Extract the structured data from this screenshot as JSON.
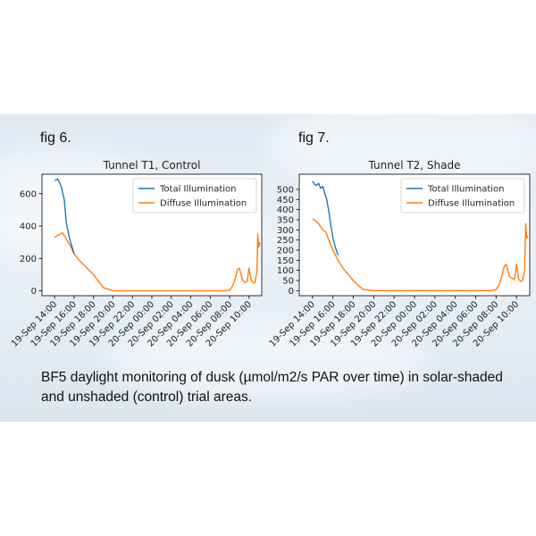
{
  "figures": [
    {
      "label": "fig 6."
    },
    {
      "label": "fig 7."
    }
  ],
  "caption": {
    "line1": "BF5 daylight monitoring of dusk (µmol/m2/s PAR over time) in solar-shaded",
    "line2": "and unshaded (control) trial areas."
  },
  "chart_data": [
    {
      "type": "line",
      "title": "Tunnel T1, Control",
      "xlabel": "",
      "ylabel": "",
      "x_unit": "hours since 19-Sep 14:00",
      "xlim": [
        -1.3,
        21.3
      ],
      "ylim": [
        -30,
        720
      ],
      "yticks": [
        0,
        200,
        400,
        600
      ],
      "xtick_labels": [
        "19-Sep 14:00",
        "19-Sep 16:00",
        "19-Sep 18:00",
        "19-Sep 20:00",
        "19-Sep 22:00",
        "20-Sep 00:00",
        "20-Sep 02:00",
        "20-Sep 04:00",
        "20-Sep 06:00",
        "20-Sep 08:00",
        "20-Sep 10:00"
      ],
      "legend": {
        "placement": "upper right",
        "entries": [
          "Total Illumination",
          "Diffuse Illumination"
        ]
      },
      "grid": false,
      "colors": {
        "total": "#1f77b4",
        "diffuse": "#ff7f0e"
      },
      "series": [
        {
          "name": "Total Illumination",
          "x": [
            0,
            0.3,
            0.5,
            0.7,
            1.0,
            1.2,
            1.5,
            1.8,
            2.0
          ],
          "y": [
            680,
            690,
            670,
            640,
            560,
            420,
            330,
            270,
            230
          ]
        },
        {
          "name": "Diffuse Illumination",
          "x": [
            0,
            0.4,
            0.8,
            1.2,
            1.6,
            2.0,
            2.5,
            3.0,
            3.5,
            4.0,
            4.5,
            5.0,
            6.0,
            8.0,
            10.0,
            12.0,
            14.0,
            16.0,
            17.5,
            18.0,
            18.3,
            18.6,
            18.8,
            19.0,
            19.3,
            19.6,
            19.8,
            20.0,
            20.2,
            20.4,
            20.6,
            20.8,
            20.9,
            21.0,
            21.1
          ],
          "y": [
            330,
            345,
            360,
            320,
            280,
            230,
            190,
            160,
            130,
            100,
            60,
            20,
            0,
            0,
            0,
            0,
            0,
            0,
            0,
            5,
            30,
            80,
            130,
            140,
            70,
            50,
            60,
            140,
            70,
            50,
            50,
            120,
            350,
            270,
            300
          ]
        }
      ]
    },
    {
      "type": "line",
      "title": "Tunnel T2, Shade",
      "xlabel": "",
      "ylabel": "",
      "x_unit": "hours since 19-Sep 14:00",
      "xlim": [
        -1.3,
        21.3
      ],
      "ylim": [
        -25,
        575
      ],
      "yticks": [
        0,
        50,
        100,
        150,
        200,
        250,
        300,
        350,
        400,
        450,
        500
      ],
      "xtick_labels": [
        "19-Sep 14:00",
        "19-Sep 16:00",
        "19-Sep 18:00",
        "19-Sep 20:00",
        "19-Sep 22:00",
        "20-Sep 00:00",
        "20-Sep 02:00",
        "20-Sep 04:00",
        "20-Sep 06:00",
        "20-Sep 08:00",
        "20-Sep 10:00"
      ],
      "legend": {
        "placement": "upper right",
        "entries": [
          "Total Illumination",
          "Diffuse Illumination"
        ]
      },
      "grid": false,
      "colors": {
        "total": "#1f77b4",
        "diffuse": "#ff7f0e"
      },
      "series": [
        {
          "name": "Total Illumination",
          "x": [
            0,
            0.2,
            0.4,
            0.6,
            0.8,
            1.0,
            1.2,
            1.4,
            1.6,
            1.8,
            2.0,
            2.2,
            2.5
          ],
          "y": [
            540,
            525,
            520,
            530,
            505,
            515,
            480,
            450,
            390,
            320,
            260,
            220,
            175
          ]
        },
        {
          "name": "Diffuse Illumination",
          "x": [
            0,
            0.3,
            0.6,
            1.0,
            1.3,
            1.6,
            2.0,
            2.5,
            3.0,
            3.5,
            4.0,
            4.5,
            5.0,
            6.0,
            8.0,
            10.0,
            12.0,
            14.0,
            16.0,
            17.5,
            18.0,
            18.3,
            18.6,
            18.8,
            19.0,
            19.3,
            19.6,
            19.8,
            20.0,
            20.2,
            20.4,
            20.6,
            20.8,
            20.9,
            21.0,
            21.1
          ],
          "y": [
            355,
            345,
            330,
            300,
            290,
            250,
            200,
            150,
            110,
            80,
            50,
            25,
            5,
            0,
            0,
            0,
            0,
            0,
            0,
            0,
            5,
            30,
            80,
            120,
            130,
            70,
            60,
            55,
            130,
            60,
            45,
            50,
            100,
            330,
            260,
            270
          ]
        }
      ]
    }
  ]
}
